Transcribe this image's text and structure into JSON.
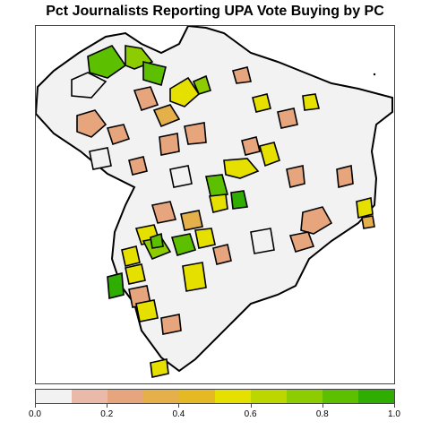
{
  "title": "Pct Journalists Reporting UPA Vote Buying by PC",
  "legend": {
    "bins": [
      {
        "from": 0.0,
        "to": 0.1,
        "color": "#f2f2f2"
      },
      {
        "from": 0.1,
        "to": 0.2,
        "color": "#ebb9a8"
      },
      {
        "from": 0.2,
        "to": 0.3,
        "color": "#e6a57c"
      },
      {
        "from": 0.3,
        "to": 0.4,
        "color": "#e5b04a"
      },
      {
        "from": 0.4,
        "to": 0.5,
        "color": "#e4b924"
      },
      {
        "from": 0.5,
        "to": 0.6,
        "color": "#e6e000"
      },
      {
        "from": 0.6,
        "to": 0.7,
        "color": "#bcd600"
      },
      {
        "from": 0.7,
        "to": 0.8,
        "color": "#8ccc00"
      },
      {
        "from": 0.8,
        "to": 0.9,
        "color": "#5cc000"
      },
      {
        "from": 0.9,
        "to": 1.0,
        "color": "#2fad00"
      }
    ],
    "tick_labels": [
      "0.0",
      "0.2",
      "0.4",
      "0.6",
      "0.8",
      "1.0"
    ]
  },
  "chart_data": {
    "type": "choropleth",
    "title": "Pct Journalists Reporting UPA Vote Buying by PC",
    "value_range": [
      0.0,
      1.0
    ],
    "value_label": "Pct journalists reporting UPA vote buying",
    "regions": [
      {
        "name": "",
        "value": 0.85
      },
      {
        "name": "",
        "value": 0.05
      },
      {
        "name": "",
        "value": 0.75
      },
      {
        "name": "",
        "value": 0.55
      },
      {
        "name": "",
        "value": 0.35
      },
      {
        "name": "",
        "value": 0.25
      },
      {
        "name": "",
        "value": 0.15
      },
      {
        "name": "",
        "value": 0.65
      },
      {
        "name": "",
        "value": 0.95
      },
      {
        "name": "",
        "value": 0.45
      }
    ]
  }
}
